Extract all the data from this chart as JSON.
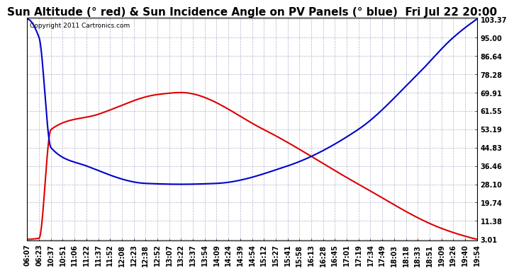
{
  "title": "Sun Altitude (° red) & Sun Incidence Angle on PV Panels (° blue)  Fri Jul 22 20:00",
  "copyright_text": "Copyright 2011 Cartronics.com",
  "yticks": [
    3.01,
    11.38,
    19.74,
    28.1,
    36.46,
    44.83,
    53.19,
    61.55,
    69.91,
    78.28,
    86.64,
    95.0,
    103.37
  ],
  "ymin": 3.01,
  "ymax": 103.37,
  "xtick_labels": [
    "06:07",
    "06:23",
    "10:37",
    "10:51",
    "11:06",
    "11:22",
    "11:37",
    "11:52",
    "12:08",
    "12:23",
    "12:38",
    "12:52",
    "13:07",
    "13:22",
    "13:37",
    "13:54",
    "14:09",
    "14:24",
    "14:39",
    "14:54",
    "15:12",
    "15:27",
    "15:41",
    "15:58",
    "16:13",
    "16:28",
    "16:45",
    "17:01",
    "17:19",
    "17:34",
    "17:49",
    "18:03",
    "18:18",
    "18:33",
    "18:51",
    "19:09",
    "19:26",
    "19:40",
    "19:54"
  ],
  "background_color": "#ffffff",
  "plot_background": "#ffffff",
  "grid_color": "#aaaacc",
  "red_color": "#dd0000",
  "blue_color": "#0000cc",
  "title_fontsize": 11,
  "tick_fontsize": 7,
  "red_keypoints_x": [
    0,
    1,
    2,
    6,
    11,
    13,
    20,
    28,
    35,
    38
  ],
  "red_keypoints_y": [
    3.01,
    3.5,
    53.0,
    60.0,
    69.0,
    69.91,
    53.0,
    28.1,
    8.0,
    3.01
  ],
  "blue_keypoints_x": [
    0,
    1,
    2,
    5,
    10,
    13,
    16,
    22,
    28,
    33,
    36,
    38
  ],
  "blue_keypoints_y": [
    103.37,
    95.0,
    44.83,
    36.46,
    28.5,
    28.1,
    28.5,
    36.46,
    53.19,
    78.28,
    95.0,
    103.37
  ]
}
